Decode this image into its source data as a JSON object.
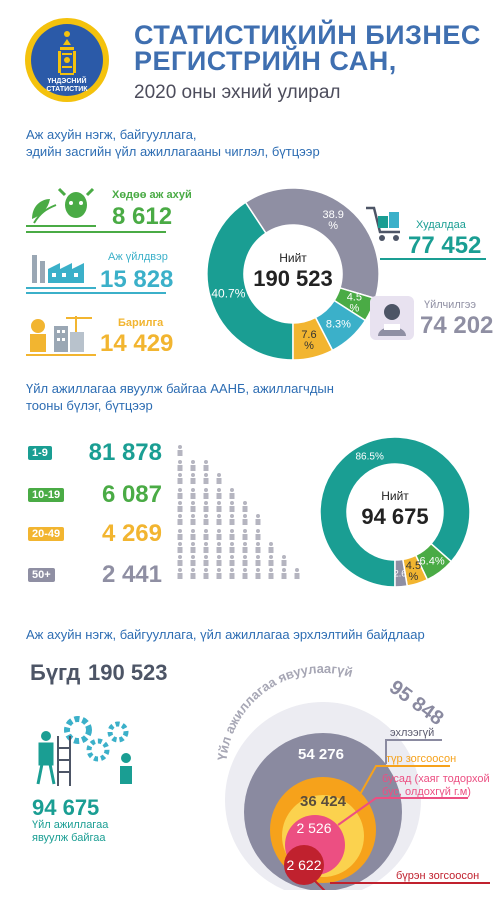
{
  "header": {
    "emblem_text_1": "ҮНДЭСНИЙ",
    "emblem_text_2": "СТАТИСТИК",
    "title_line1": "СТАТИСТИКИЙН БИЗНЕС",
    "title_line2": "РЕГИСТРИЙН САН,",
    "subtitle": "2020 оны эхний улирал"
  },
  "section1": {
    "heading_line1": "Аж ахуйн нэгж, байгууллага,",
    "heading_line2": "эдийн засгийн үйл ажиллагааны чиглэл, бүтцээр",
    "sectors": [
      {
        "label": "Хөдөө аж ахуй",
        "value": "8 612",
        "color": "#4aab45"
      },
      {
        "label": "Аж үйлдвэр",
        "value": "15 828",
        "color": "#3bb0c9"
      },
      {
        "label": "Барилга",
        "value": "14 429",
        "color": "#f2b530"
      },
      {
        "label": "Худалдаа",
        "value": "77 452",
        "color": "#1a9e93"
      },
      {
        "label": "Үйлчилгээ",
        "value": "74 202",
        "color": "#8f8fa3"
      }
    ]
  },
  "chart_data": [
    {
      "type": "pie",
      "center_label": "Нийт",
      "center_value": "190 523",
      "slices": [
        {
          "label": "40.7%",
          "value": 40.7,
          "color": "#1a9e93"
        },
        {
          "label": "38.9\n%",
          "value": 38.9,
          "color": "#8f8fa3"
        },
        {
          "label": "4.5\n%",
          "value": 4.5,
          "color": "#4aab45"
        },
        {
          "label": "8.3%",
          "value": 8.3,
          "color": "#3bb0c9"
        },
        {
          "label": "7.6\n%",
          "value": 7.6,
          "color": "#f2b530"
        }
      ]
    },
    {
      "type": "pie",
      "center_label": "Нийт",
      "center_value": "94 675",
      "slices": [
        {
          "label": "86.5%",
          "value": 86.5,
          "color": "#1a9e93"
        },
        {
          "label": "6.4%",
          "value": 6.4,
          "color": "#4aab45"
        },
        {
          "label": "4.5\n%",
          "value": 4.5,
          "color": "#f2b530"
        },
        {
          "label": "2.6",
          "value": 2.6,
          "color": "#8f8fa3"
        }
      ]
    }
  ],
  "section2": {
    "heading_line1": "Үйл ажиллагаа явуулж байгаа ААНБ, ажиллагчдын",
    "heading_line2": "тооны бүлэг, бүтцээр",
    "groups": [
      {
        "tag": "1-9",
        "value": "81 878",
        "color": "#1a9e93",
        "people": 1
      },
      {
        "tag": "10-19",
        "value": "6 087",
        "color": "#4aab45",
        "people": 3
      },
      {
        "tag": "20-49",
        "value": "4 269",
        "color": "#f2b530",
        "people": 5
      },
      {
        "tag": "50+",
        "value": "2 441",
        "color": "#8f8fa3",
        "people": 7
      }
    ]
  },
  "section3": {
    "heading": "Аж ахуйн нэгж, байгууллага, үйл ажиллагаа эрхлэлтийн байдлаар",
    "total_label": "Бүгд",
    "total_value": "190 523",
    "active_value": "94 675",
    "active_label_1": "Үйл ажиллагаа",
    "active_label_2": "явуулж байгаа",
    "arc_label": "Үйл ажиллагаа явуулаагүй",
    "arc_value": "95 848",
    "circles": [
      {
        "value": "54 276",
        "label": "эхлээгүй",
        "color": "#8a8aa0"
      },
      {
        "value": "36 424",
        "label": "түр зогсоосон",
        "color": "#f6a21b"
      },
      {
        "value": "2 526",
        "label": "бусад (хаяг тодорхой бус, олдохгүй г.м)",
        "label_1": "бусад (хаяг тодорхой",
        "label_2": "бус, олдохгүй г.м)",
        "color": "#ec4f82"
      },
      {
        "value": "2 622",
        "label": "бүрэн зогсоосон",
        "color": "#c0212e"
      }
    ]
  }
}
